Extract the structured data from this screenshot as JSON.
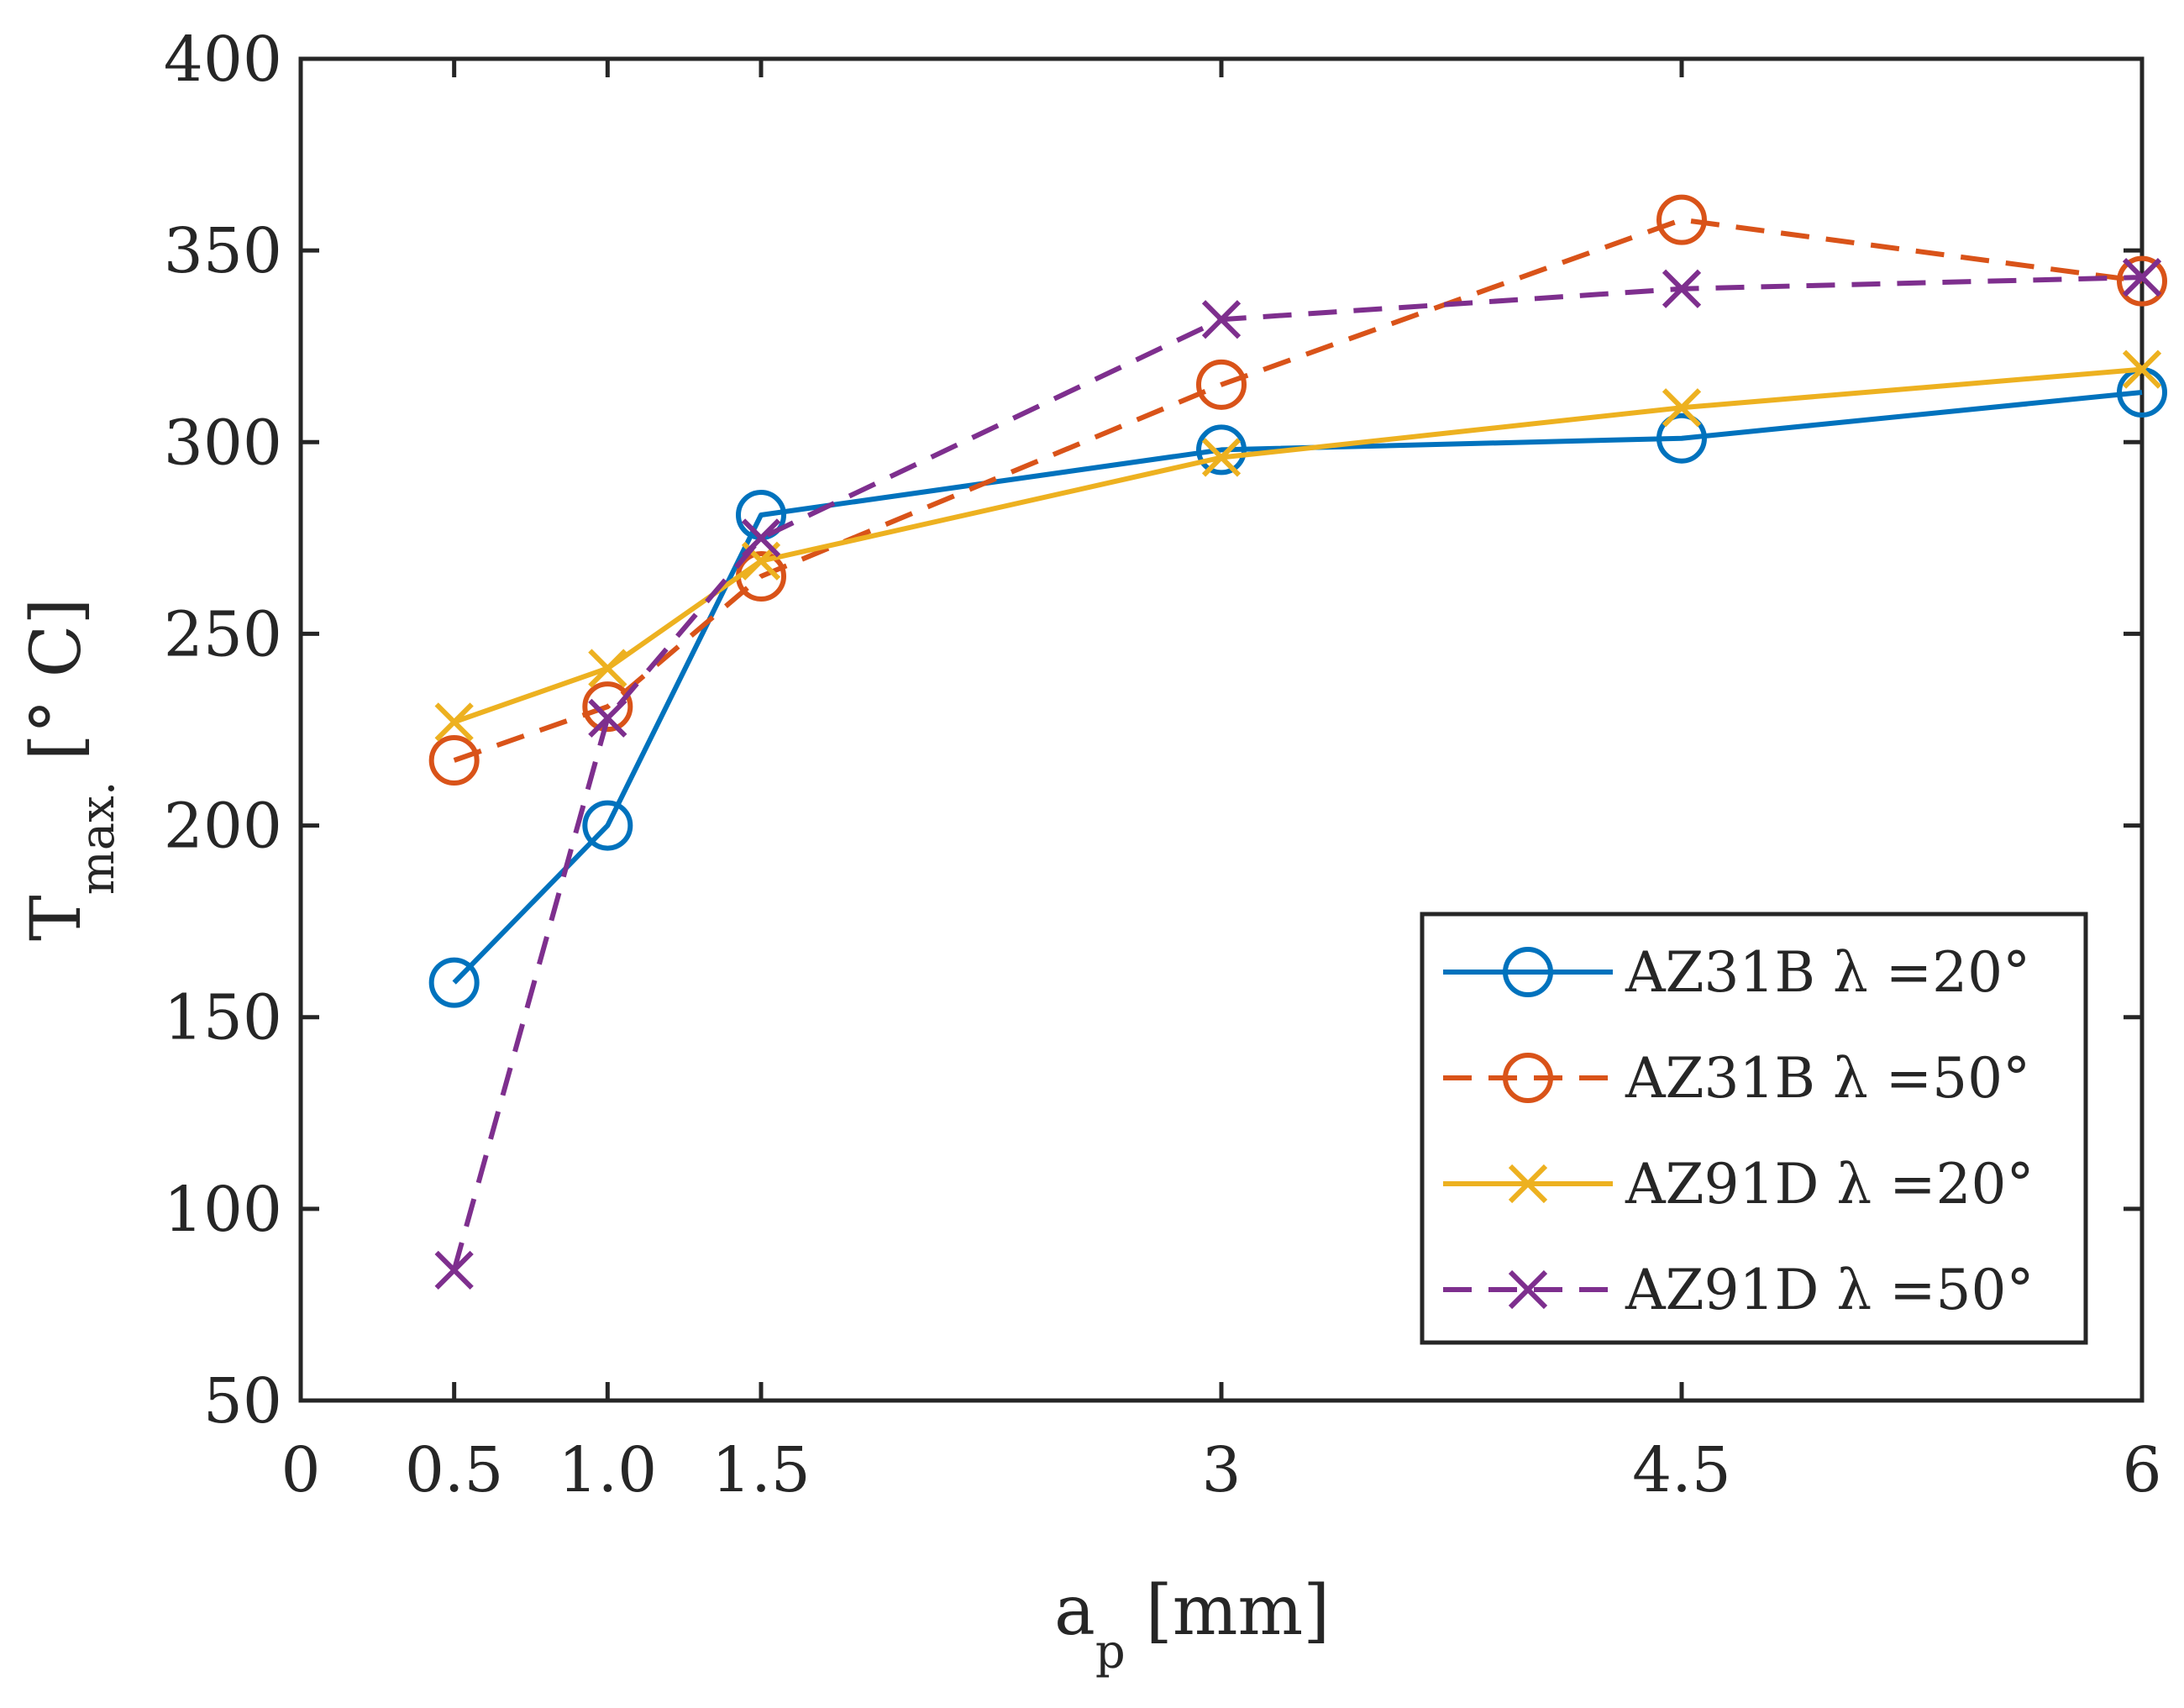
{
  "chart_data": {
    "type": "line",
    "xlabel": {
      "main": "a",
      "sub": "p",
      "unit": "[mm]"
    },
    "ylabel": {
      "main": "T",
      "sub": "max.",
      "unit": "[° C]"
    },
    "xlim": [
      0,
      6
    ],
    "ylim": [
      50,
      400
    ],
    "xticks": [
      0,
      0.5,
      1.0,
      1.5,
      3,
      4.5,
      6
    ],
    "xtick_labels": [
      "0",
      "0.5",
      "1.0",
      "1.5",
      "3",
      "4.5",
      "6"
    ],
    "yticks": [
      50,
      100,
      150,
      200,
      250,
      300,
      350,
      400
    ],
    "ytick_labels": [
      "50",
      "100",
      "150",
      "200",
      "250",
      "300",
      "350",
      "400"
    ],
    "grid": false,
    "legend_position": "bottom-right",
    "x": [
      0.5,
      1.0,
      1.5,
      3,
      4.5,
      6
    ],
    "series": [
      {
        "name": "AZ31B λ =20°",
        "color": "#0072BD",
        "dashed": false,
        "marker": "circle",
        "values": [
          159,
          200,
          281,
          298,
          301,
          313
        ]
      },
      {
        "name": "AZ31B λ =50°",
        "color": "#D95319",
        "dashed": true,
        "marker": "circle",
        "values": [
          217,
          231,
          265,
          315,
          358,
          342
        ]
      },
      {
        "name": "AZ91D λ =20°",
        "color": "#EDB120",
        "dashed": false,
        "marker": "x",
        "values": [
          227,
          241,
          269,
          296,
          309,
          319
        ]
      },
      {
        "name": "AZ91D λ =50°",
        "color": "#7E2F8E",
        "dashed": true,
        "marker": "x",
        "values": [
          84,
          228,
          275,
          332,
          340,
          343
        ]
      }
    ]
  }
}
